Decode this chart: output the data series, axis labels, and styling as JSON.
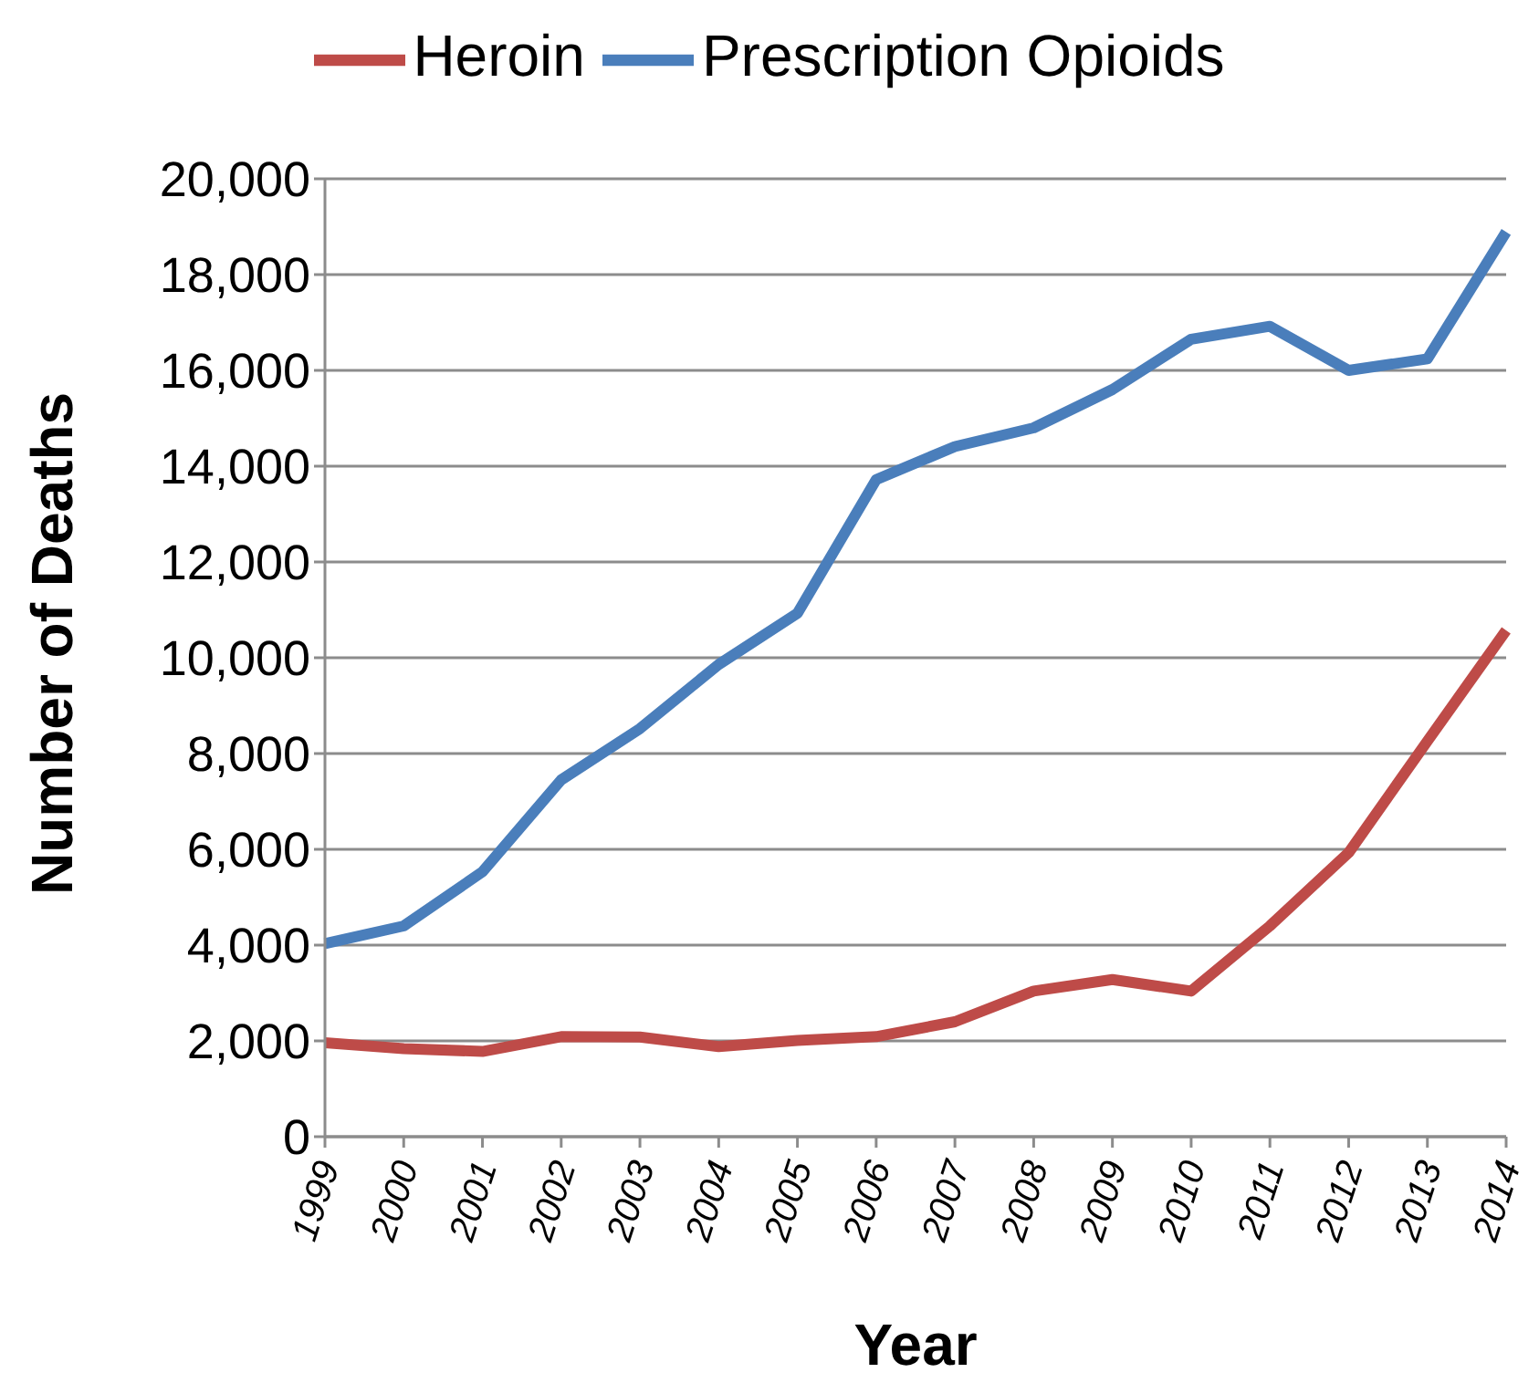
{
  "chart_data": {
    "type": "line",
    "xlabel": "Year",
    "ylabel": "Number of Deaths",
    "categories": [
      "1999",
      "2000",
      "2001",
      "2002",
      "2003",
      "2004",
      "2005",
      "2006",
      "2007",
      "2008",
      "2009",
      "2010",
      "2011",
      "2012",
      "2013",
      "2014"
    ],
    "series": [
      {
        "name": "Prescription Opioids",
        "color": "#4a7ebb",
        "values": [
          4030,
          4400,
          5530,
          7450,
          8520,
          9860,
          10930,
          13720,
          14410,
          14800,
          15600,
          16650,
          16920,
          16000,
          16240,
          18890
        ]
      },
      {
        "name": "Heroin",
        "color": "#be4b48",
        "values": [
          1960,
          1840,
          1780,
          2090,
          2080,
          1880,
          2010,
          2090,
          2400,
          3040,
          3280,
          3040,
          4400,
          5930,
          8260,
          10570
        ]
      }
    ],
    "ylim": [
      0,
      20000
    ],
    "yticks": [
      {
        "value": 0,
        "label": "0"
      },
      {
        "value": 2000,
        "label": "2,000"
      },
      {
        "value": 4000,
        "label": "4,000"
      },
      {
        "value": 6000,
        "label": "6,000"
      },
      {
        "value": 8000,
        "label": "8,000"
      },
      {
        "value": 10000,
        "label": "10,000"
      },
      {
        "value": 12000,
        "label": "12,000"
      },
      {
        "value": 14000,
        "label": "14,000"
      },
      {
        "value": 16000,
        "label": "16,000"
      },
      {
        "value": 18000,
        "label": "18,000"
      },
      {
        "value": 20000,
        "label": "20,000"
      }
    ],
    "grid": "y",
    "legend": "top",
    "marker": "none",
    "line_style": "solid"
  }
}
